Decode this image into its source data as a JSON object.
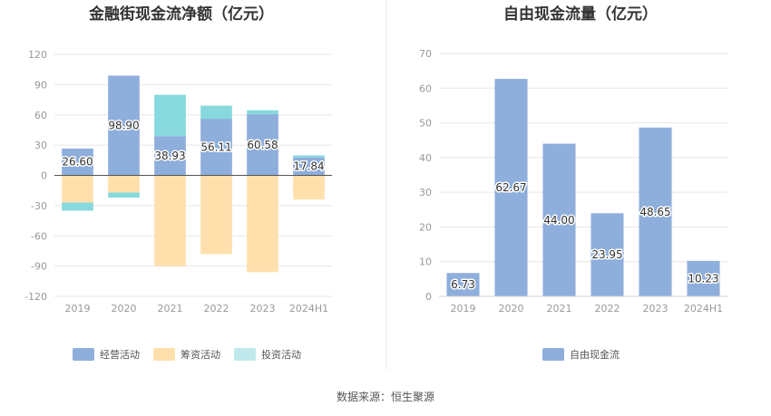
{
  "chart_data": [
    {
      "type": "bar",
      "stacked": true,
      "title": "金融街现金流净额（亿元）",
      "categories": [
        "2019",
        "2020",
        "2021",
        "2022",
        "2023",
        "2024H1"
      ],
      "ylim": [
        -120,
        120
      ],
      "yticks": [
        120,
        90,
        60,
        30,
        0,
        -30,
        -60,
        -90,
        -120
      ],
      "series": [
        {
          "name": "经营活动",
          "color": "#8eaedc",
          "values": [
            26.6,
            98.9,
            38.93,
            56.11,
            60.58,
            17.84
          ],
          "labels": [
            "26.60",
            "98.90",
            "38.93",
            "56.11",
            "60.58",
            "17.84"
          ]
        },
        {
          "name": "筹资活动",
          "color": "#ffe0ad",
          "values": [
            -27,
            -17,
            -90,
            -78,
            -96,
            -24
          ]
        },
        {
          "name": "投资活动",
          "color": "#87d9de",
          "values": [
            -8,
            -5,
            41,
            13,
            4,
            2
          ]
        }
      ],
      "legend": "bottom",
      "legend_colors": [
        "#8eaedc",
        "#ffe0ad",
        "#bfe9ec"
      ]
    },
    {
      "type": "bar",
      "title": "自由现金流量（亿元）",
      "categories": [
        "2019",
        "2020",
        "2021",
        "2022",
        "2023",
        "2024H1"
      ],
      "ylim": [
        0,
        70
      ],
      "yticks": [
        70,
        60,
        50,
        40,
        30,
        20,
        10,
        0
      ],
      "series": [
        {
          "name": "自由现金流",
          "color": "#8eaedc",
          "values": [
            6.73,
            62.67,
            44.0,
            23.95,
            48.65,
            10.23
          ],
          "labels": [
            "6.73",
            "62.67",
            "44.00",
            "23.95",
            "48.65",
            "10.23"
          ]
        }
      ],
      "legend": "bottom",
      "legend_colors": [
        "#8eaedc"
      ]
    }
  ],
  "footer": {
    "source": "数据来源：恒生聚源"
  }
}
